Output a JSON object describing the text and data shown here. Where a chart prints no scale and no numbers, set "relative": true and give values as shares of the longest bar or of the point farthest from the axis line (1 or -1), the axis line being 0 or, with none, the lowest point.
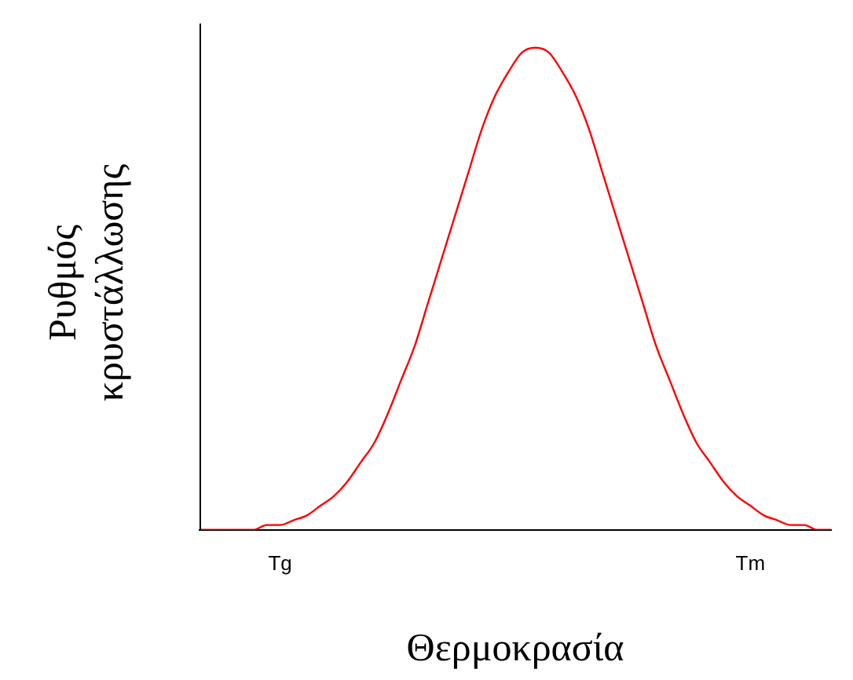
{
  "chart_data": {
    "type": "line",
    "relative": true,
    "xlabel": "Θερμοκρασία",
    "ylabel": "Ρυθμός κρυστάλλωσης",
    "categories": [
      null,
      null,
      null,
      null,
      null,
      null,
      "Tg",
      null,
      null,
      null,
      null,
      null,
      null,
      null,
      null,
      null,
      null,
      null,
      null,
      null,
      null,
      null,
      null,
      null,
      null,
      null,
      null,
      null,
      null,
      null,
      null,
      null,
      null,
      null,
      null,
      null,
      null,
      null,
      null,
      null,
      null,
      "Tm",
      null,
      null,
      null,
      null,
      null,
      null
    ],
    "series": [
      {
        "color": "#ff0000",
        "values": [
          0,
          0,
          0,
          0,
          0,
          0.01,
          0.01,
          0.02,
          0.03,
          0.05,
          0.07,
          0.1,
          0.14,
          0.18,
          0.24,
          0.31,
          0.38,
          0.47,
          0.56,
          0.65,
          0.74,
          0.83,
          0.9,
          0.95,
          0.99,
          1,
          0.99,
          0.95,
          0.9,
          0.83,
          0.74,
          0.65,
          0.56,
          0.47,
          0.38,
          0.31,
          0.24,
          0.18,
          0.14,
          0.1,
          0.07,
          0.05,
          0.03,
          0.02,
          0.01,
          0.01,
          0,
          0
        ]
      }
    ],
    "grid": false,
    "legend": false,
    "marker": "none",
    "line_style": "solid"
  }
}
